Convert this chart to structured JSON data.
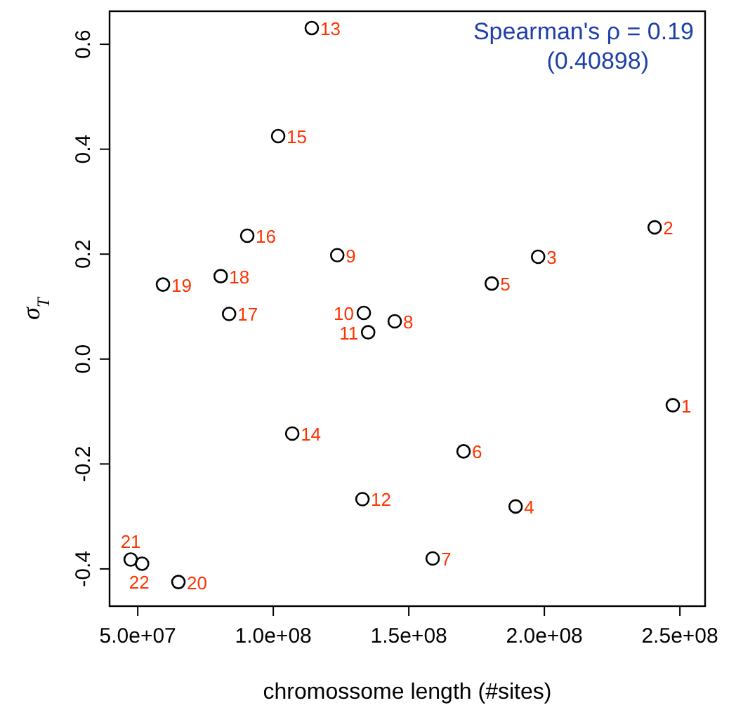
{
  "chart_data": {
    "type": "scatter",
    "xlabel": "chromossome length (#sites)",
    "ylabel": "σ$_{T}$",
    "x": [
      247400000,
      240700000,
      197700000,
      189400000,
      180600000,
      170200000,
      158800000,
      144800000,
      123600000,
      133400000,
      135000000,
      132900000,
      114200000,
      107000000,
      101800000,
      90400000,
      83700000,
      80600000,
      59300000,
      65000000,
      47400000,
      51600000
    ],
    "series": [
      {
        "color": "#000000",
        "values": [
          -0.088,
          0.251,
          0.195,
          -0.281,
          0.144,
          -0.176,
          -0.38,
          0.072,
          0.198,
          0.088,
          0.051,
          -0.267,
          0.631,
          -0.142,
          0.425,
          0.235,
          0.086,
          0.158,
          0.142,
          -0.425,
          -0.382,
          -0.39
        ]
      }
    ],
    "marker": "circle",
    "grid": false,
    "xlim": [
      39600000,
      259300000
    ],
    "ylim": [
      -0.471,
      0.663
    ],
    "xticks": [
      {
        "value": 50000000,
        "label": "5.0e+07"
      },
      {
        "value": 100000000,
        "label": "1.0e+08"
      },
      {
        "value": 150000000,
        "label": "1.5e+08"
      },
      {
        "value": 200000000,
        "label": "2.0e+08"
      },
      {
        "value": 250000000,
        "label": "2.5e+08"
      }
    ],
    "yticks": [
      {
        "value": -0.4,
        "label": "-0.4"
      },
      {
        "value": -0.2,
        "label": "-0.2"
      },
      {
        "value": 0,
        "label": "0.0"
      },
      {
        "value": 0.2,
        "label": "0.2"
      },
      {
        "value": 0.4,
        "label": "0.4"
      },
      {
        "value": 0.6,
        "label": "0.6"
      }
    ],
    "annotations": [
      "Spearman's ρ = 0.19",
      "(0.40898)",
      {
        "text": "1",
        "x": 247400000,
        "y": -0.088
      },
      {
        "text": "2",
        "x": 240700000,
        "y": 0.251
      },
      {
        "text": "3",
        "x": 197700000,
        "y": 0.195
      },
      {
        "text": "4",
        "x": 189400000,
        "y": -0.281
      },
      {
        "text": "5",
        "x": 180600000,
        "y": 0.144
      },
      {
        "text": "6",
        "x": 170200000,
        "y": -0.176
      },
      {
        "text": "7",
        "x": 158800000,
        "y": -0.38
      },
      {
        "text": "8",
        "x": 144800000,
        "y": 0.072
      },
      {
        "text": "9",
        "x": 123600000,
        "y": 0.198
      },
      {
        "text": "10",
        "x": 133400000,
        "y": 0.088
      },
      {
        "text": "11",
        "x": 135000000,
        "y": 0.051
      },
      {
        "text": "12",
        "x": 132900000,
        "y": -0.267
      },
      {
        "text": "13",
        "x": 114200000,
        "y": 0.631
      },
      {
        "text": "14",
        "x": 107000000,
        "y": -0.142
      },
      {
        "text": "15",
        "x": 101800000,
        "y": 0.425
      },
      {
        "text": "16",
        "x": 90400000,
        "y": 0.235
      },
      {
        "text": "17",
        "x": 83700000,
        "y": 0.086
      },
      {
        "text": "18",
        "x": 80600000,
        "y": 0.158
      },
      {
        "text": "19",
        "x": 59300000,
        "y": 0.142
      },
      {
        "text": "20",
        "x": 65000000,
        "y": -0.425
      },
      {
        "text": "21",
        "x": 47400000,
        "y": -0.382
      },
      {
        "text": "22",
        "x": 51600000,
        "y": -0.39
      }
    ]
  }
}
